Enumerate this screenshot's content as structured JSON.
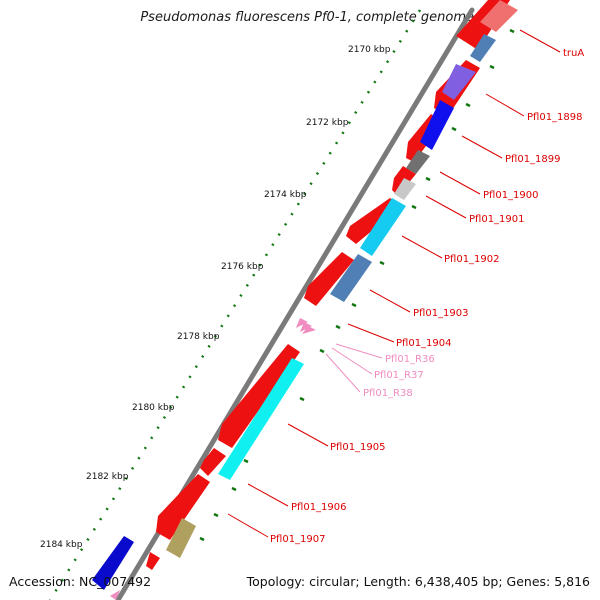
{
  "title": "Pseudomonas fluorescens Pf0-1, complete genome",
  "footer": {
    "accession": "Accession: NC_007492",
    "topology": "Topology: circular; Length: 6,438,405 bp; Genes: 5,816"
  },
  "ruler_labels": [
    "2170 kbp",
    "2172 kbp",
    "2174 kbp",
    "2176 kbp",
    "2178 kbp",
    "2180 kbp",
    "2182 kbp",
    "2184 kbp"
  ],
  "gene_labels": [
    {
      "text": "truA",
      "color": "#dd0000"
    },
    {
      "text": "Pfl01_1898",
      "color": "#dd0000"
    },
    {
      "text": "Pfl01_1899",
      "color": "#dd0000"
    },
    {
      "text": "Pfl01_1900",
      "color": "#dd0000"
    },
    {
      "text": "Pfl01_1901",
      "color": "#dd0000"
    },
    {
      "text": "Pfl01_1902",
      "color": "#dd0000"
    },
    {
      "text": "Pfl01_1903",
      "color": "#dd0000"
    },
    {
      "text": "Pfl01_1904",
      "color": "#dd0000"
    },
    {
      "text": "Pfl01_R36",
      "color": "#f08cc0"
    },
    {
      "text": "Pfl01_R37",
      "color": "#f08cc0"
    },
    {
      "text": "Pfl01_R38",
      "color": "#f08cc0"
    },
    {
      "text": "Pfl01_1905",
      "color": "#dd0000"
    },
    {
      "text": "Pfl01_1906",
      "color": "#dd0000"
    },
    {
      "text": "Pfl01_1907",
      "color": "#dd0000"
    }
  ],
  "colors": {
    "gene_red": "#ee0000",
    "backbone": "#777777",
    "tick_green": "#117711",
    "label_line": "#dd0000",
    "rna_pink": "#f08cc0"
  }
}
